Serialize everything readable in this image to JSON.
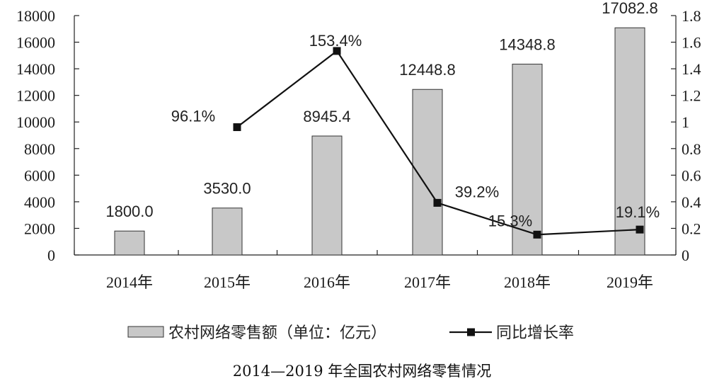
{
  "caption": "2014—2019 年全国农村网络零售情况",
  "chart_data": {
    "type": "bar",
    "categories": [
      "2014年",
      "2015年",
      "2016年",
      "2017年",
      "2018年",
      "2019年"
    ],
    "series": [
      {
        "name": "农村网络零售额（单位：亿元）",
        "type": "bar",
        "axis": "left",
        "values": [
          1800.0,
          3530.0,
          8945.4,
          12448.8,
          14348.8,
          17082.8
        ],
        "labels": [
          "1800.0",
          "3530.0",
          "8945.4",
          "12448.8",
          "14348.8",
          "17082.8"
        ],
        "color": "#c8c8c8"
      },
      {
        "name": "同比增长率",
        "type": "line",
        "axis": "right",
        "values": [
          null,
          0.961,
          1.534,
          0.392,
          0.153,
          0.191
        ],
        "labels": [
          "",
          "96.1%",
          "153.4%",
          "39.2%",
          "15.3%",
          "19.1%"
        ],
        "color": "#111111"
      }
    ],
    "left_axis": {
      "ylim": [
        0,
        18000
      ],
      "ticks": [
        "0",
        "2000",
        "4000",
        "6000",
        "8000",
        "10000",
        "12000",
        "14000",
        "16000",
        "18000"
      ]
    },
    "right_axis": {
      "ylim": [
        0,
        1.8
      ],
      "ticks": [
        "0",
        "0.2",
        "0.4",
        "0.6",
        "0.8",
        "1",
        "1.2",
        "1.4",
        "1.6",
        "1.8"
      ]
    },
    "grid": false,
    "legend": "bottom"
  }
}
